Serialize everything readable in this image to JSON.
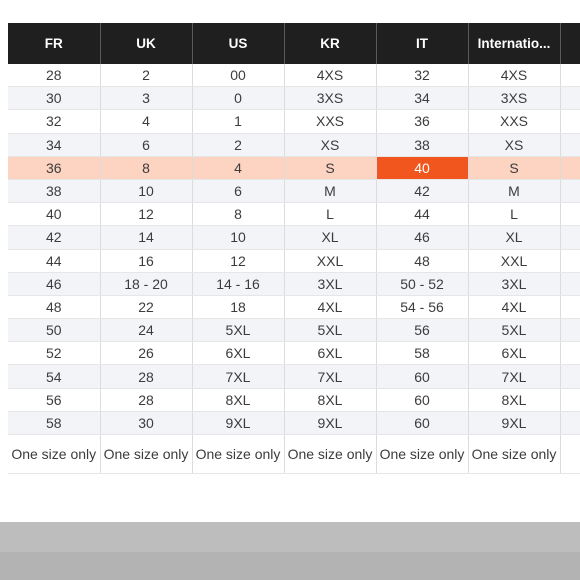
{
  "size_table": {
    "headers": [
      "FR",
      "UK",
      "US",
      "KR",
      "IT",
      "Internatio...",
      ""
    ],
    "highlight_row": 4,
    "selected_column": 4,
    "rows": [
      [
        "28",
        "2",
        "00",
        "4XS",
        "32",
        "4XS",
        ""
      ],
      [
        "30",
        "3",
        "0",
        "3XS",
        "34",
        "3XS",
        ""
      ],
      [
        "32",
        "4",
        "1",
        "XXS",
        "36",
        "XXS",
        ""
      ],
      [
        "34",
        "6",
        "2",
        "XS",
        "38",
        "XS",
        ""
      ],
      [
        "36",
        "8",
        "4",
        "S",
        "40",
        "S",
        ""
      ],
      [
        "38",
        "10",
        "6",
        "M",
        "42",
        "M",
        ""
      ],
      [
        "40",
        "12",
        "8",
        "L",
        "44",
        "L",
        ""
      ],
      [
        "42",
        "14",
        "10",
        "XL",
        "46",
        "XL",
        ""
      ],
      [
        "44",
        "16",
        "12",
        "XXL",
        "48",
        "XXL",
        ""
      ],
      [
        "46",
        "18 - 20",
        "14 - 16",
        "3XL",
        "50 - 52",
        "3XL",
        ""
      ],
      [
        "48",
        "22",
        "18",
        "4XL",
        "54 - 56",
        "4XL",
        ""
      ],
      [
        "50",
        "24",
        "5XL",
        "5XL",
        "56",
        "5XL",
        ""
      ],
      [
        "52",
        "26",
        "6XL",
        "6XL",
        "58",
        "6XL",
        ""
      ],
      [
        "54",
        "28",
        "7XL",
        "7XL",
        "60",
        "7XL",
        ""
      ],
      [
        "56",
        "28",
        "8XL",
        "8XL",
        "60",
        "8XL",
        ""
      ],
      [
        "58",
        "30",
        "9XL",
        "9XL",
        "60",
        "9XL",
        ""
      ],
      [
        "One size only",
        "One size only",
        "One size only",
        "One size only",
        "One size only",
        "One size only",
        ""
      ]
    ]
  },
  "colors": {
    "header_bg": "#1f1f1f",
    "highlight_row": "#fdd3c1",
    "selected_cell": "#f2561f",
    "stripe": "#f3f4f8"
  }
}
